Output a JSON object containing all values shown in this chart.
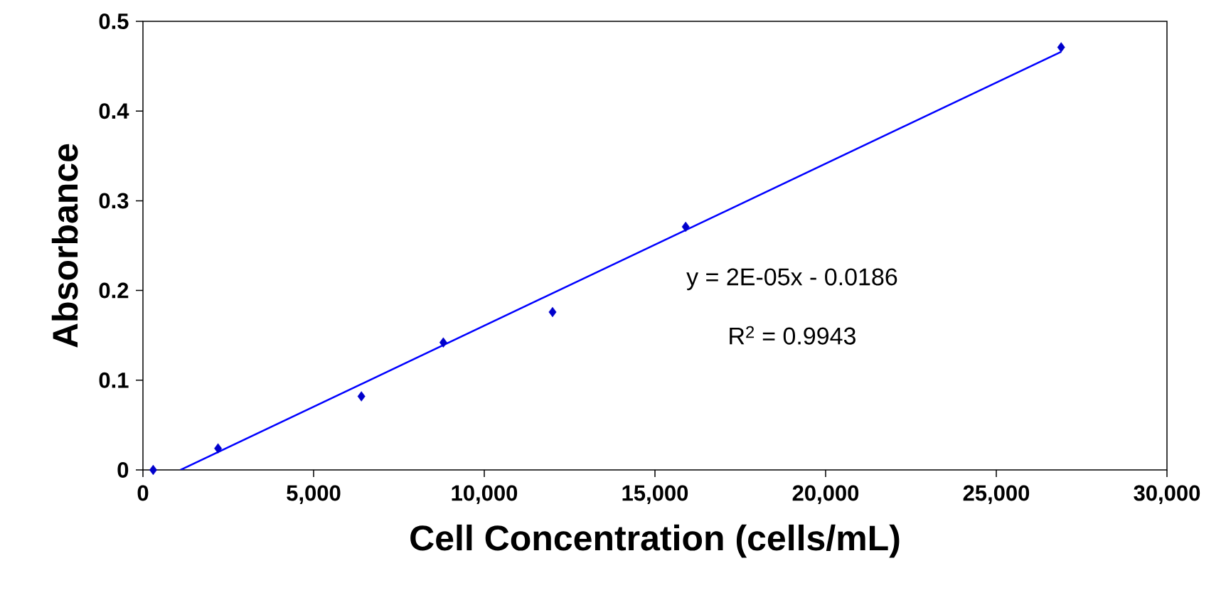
{
  "chart_data": {
    "type": "scatter",
    "xlabel": "Cell Concentration (cells/mL)",
    "ylabel": "Absorbance",
    "series": [
      {
        "color": "#0000cc",
        "marker": "diamond",
        "x": [
          300,
          2200,
          6400,
          8800,
          12000,
          15900,
          26900
        ],
        "values": [
          0,
          0.024,
          0.082,
          0.142,
          0.176,
          0.271,
          0.471
        ]
      },
      {
        "type": "line",
        "color": "#0000ff",
        "marker": "none",
        "x": [
          1100,
          26900
        ],
        "values": [
          0,
          0.466
        ]
      }
    ],
    "xlim": [
      0,
      30000
    ],
    "ylim": [
      0,
      0.5
    ],
    "xticks": [
      0,
      {
        "value": 5000,
        "label": "5,000"
      },
      {
        "value": 10000,
        "label": "10,000"
      },
      {
        "value": 15000,
        "label": "15,000"
      },
      {
        "value": 20000,
        "label": "20,000"
      },
      {
        "value": 25000,
        "label": "25,000"
      },
      {
        "value": 30000,
        "label": "30,000"
      }
    ],
    "yticks": [
      0,
      0.1,
      0.2,
      0.3,
      0.4,
      0.5
    ],
    "annotations": [
      "y = 2E-05x - 0.0186",
      "R$^{2}$ = 0.9943"
    ],
    "grid": false
  }
}
